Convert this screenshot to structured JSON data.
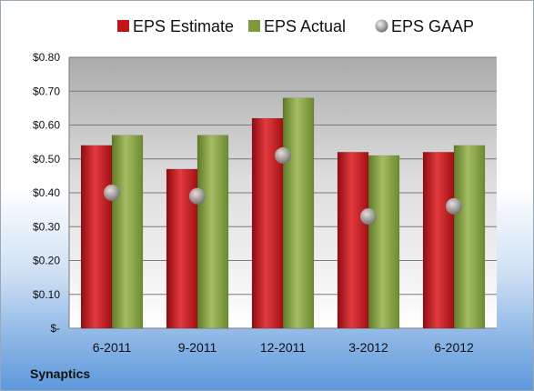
{
  "company": "Synaptics",
  "chart_data": {
    "type": "bar",
    "categories": [
      "6-2011",
      "9-2011",
      "12-2011",
      "3-2012",
      "6-2012"
    ],
    "series": [
      {
        "name": "EPS Estimate",
        "kind": "bar",
        "color": "#c0131a",
        "values": [
          0.54,
          0.47,
          0.62,
          0.52,
          0.52
        ]
      },
      {
        "name": "EPS Actual",
        "kind": "bar",
        "color": "#7f9a3c",
        "values": [
          0.57,
          0.57,
          0.68,
          0.51,
          0.54
        ]
      },
      {
        "name": "EPS GAAP",
        "kind": "marker",
        "color": "#9e9e9e",
        "values": [
          0.4,
          0.39,
          0.51,
          0.33,
          0.36
        ]
      }
    ],
    "ylim": [
      0,
      0.8
    ],
    "yticks": [
      0,
      0.1,
      0.2,
      0.3,
      0.4,
      0.5,
      0.6,
      0.7,
      0.8
    ],
    "ytick_labels": [
      "$-",
      "$0.10",
      "$0.20",
      "$0.30",
      "$0.40",
      "$0.50",
      "$0.60",
      "$0.70",
      "$0.80"
    ],
    "grid": true,
    "legend_position": "top"
  }
}
